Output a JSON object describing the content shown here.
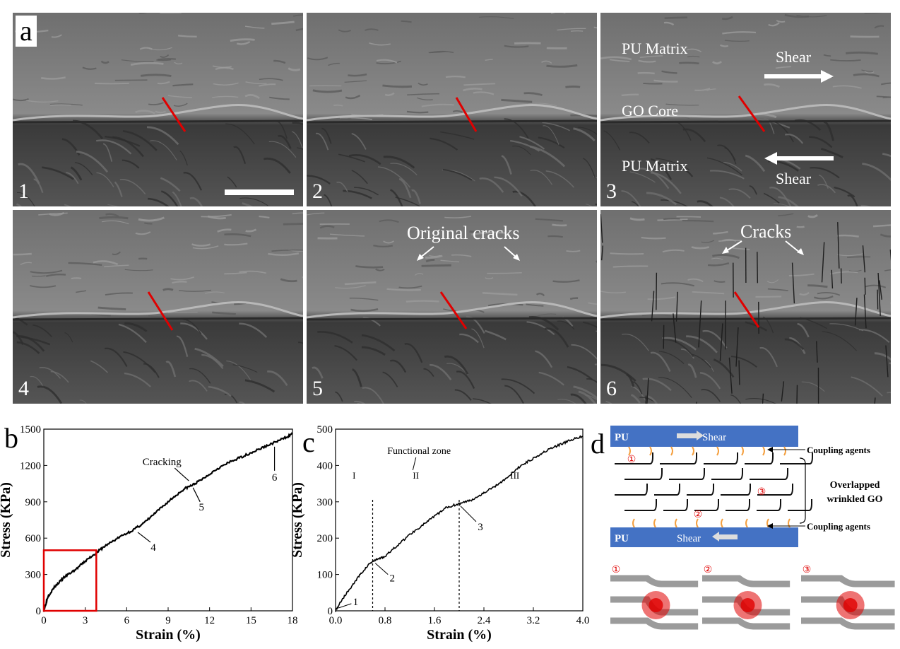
{
  "panel_letters": {
    "a": "a",
    "b": "b",
    "c": "c",
    "d": "d"
  },
  "sem_tiles": [
    {
      "number": "1"
    },
    {
      "number": "2"
    },
    {
      "number": "3"
    },
    {
      "number": "4"
    },
    {
      "number": "5"
    },
    {
      "number": "6"
    }
  ],
  "tile3_labels": {
    "pu_matrix_top": "PU Matrix",
    "go_core": "GO Core",
    "pu_matrix_bottom": "PU Matrix",
    "shear_top": "Shear",
    "shear_bottom": "Shear"
  },
  "tile5_label": "Original cracks",
  "tile6_label": "Cracks",
  "chart_data": [
    {
      "id": "b",
      "type": "line",
      "xlabel": "Strain (%)",
      "ylabel": "Stress (KPa)",
      "xlim": [
        0,
        18
      ],
      "ylim": [
        0,
        1500
      ],
      "xticks": [
        0,
        3,
        6,
        9,
        12,
        15,
        18
      ],
      "yticks": [
        0,
        300,
        600,
        900,
        1200,
        1500
      ],
      "x": [
        0,
        0.3,
        0.8,
        1.5,
        2.3,
        3.0,
        3.8,
        4.5,
        5.5,
        6.5,
        7.3,
        8.2,
        9.2,
        10.2,
        10.8,
        11.5,
        12.5,
        13.5,
        14.5,
        15.5,
        16.5,
        17.3,
        18.0
      ],
      "y": [
        0,
        120,
        200,
        280,
        340,
        410,
        480,
        540,
        610,
        670,
        730,
        820,
        920,
        1010,
        1040,
        1090,
        1170,
        1230,
        1280,
        1330,
        1380,
        1420,
        1460
      ],
      "annotations": [
        {
          "text": "Cracking",
          "x": 10.6,
          "y": 1050
        },
        {
          "text": "4",
          "x": 6.7,
          "y": 660
        },
        {
          "text": "5",
          "x": 10.8,
          "y": 1040
        },
        {
          "text": "6",
          "x": 16.7,
          "y": 1390
        }
      ],
      "highlight_box": {
        "x": [
          0,
          3.8
        ],
        "y": [
          0,
          500
        ],
        "color": "#e00000"
      },
      "grid": false
    },
    {
      "id": "c",
      "type": "line",
      "xlabel": "Strain (%)",
      "ylabel": "Stress (KPa)",
      "xlim": [
        0.0,
        4.0
      ],
      "ylim": [
        0,
        500
      ],
      "xticks": [
        0.0,
        0.8,
        1.6,
        2.4,
        3.2,
        4.0
      ],
      "yticks": [
        0,
        100,
        200,
        300,
        400,
        500
      ],
      "x": [
        0,
        0.1,
        0.25,
        0.4,
        0.55,
        0.65,
        0.8,
        1.0,
        1.2,
        1.4,
        1.6,
        1.8,
        2.0,
        2.2,
        2.4,
        2.6,
        2.8,
        3.0,
        3.2,
        3.4,
        3.6,
        3.8,
        4.0
      ],
      "y": [
        0,
        30,
        65,
        100,
        130,
        140,
        150,
        180,
        210,
        235,
        260,
        285,
        295,
        305,
        325,
        345,
        370,
        400,
        420,
        440,
        455,
        470,
        480
      ],
      "zones": [
        "I",
        "II",
        "III"
      ],
      "zone_boundaries": [
        0.6,
        2.0
      ],
      "zone_title": "Functional zone",
      "annotations": [
        {
          "text": "1",
          "x": 0.05,
          "y": 8
        },
        {
          "text": "2",
          "x": 0.62,
          "y": 135
        },
        {
          "text": "3",
          "x": 2.0,
          "y": 292
        }
      ],
      "grid": false
    }
  ],
  "schematic_d": {
    "pu_top": "PU",
    "shear_top": "Shear",
    "pu_bottom": "PU",
    "shear_bottom": "Shear",
    "coupling_top": "Coupling agents",
    "coupling_bottom": "Coupling agents",
    "overlapped": "Overlapped",
    "wrinkled": "wrinkled GO",
    "markers": [
      "①",
      "②",
      "③"
    ],
    "colors": {
      "pu_bar": "#4472c4",
      "coupling": "#f4a040",
      "marker": "#e00000"
    }
  }
}
